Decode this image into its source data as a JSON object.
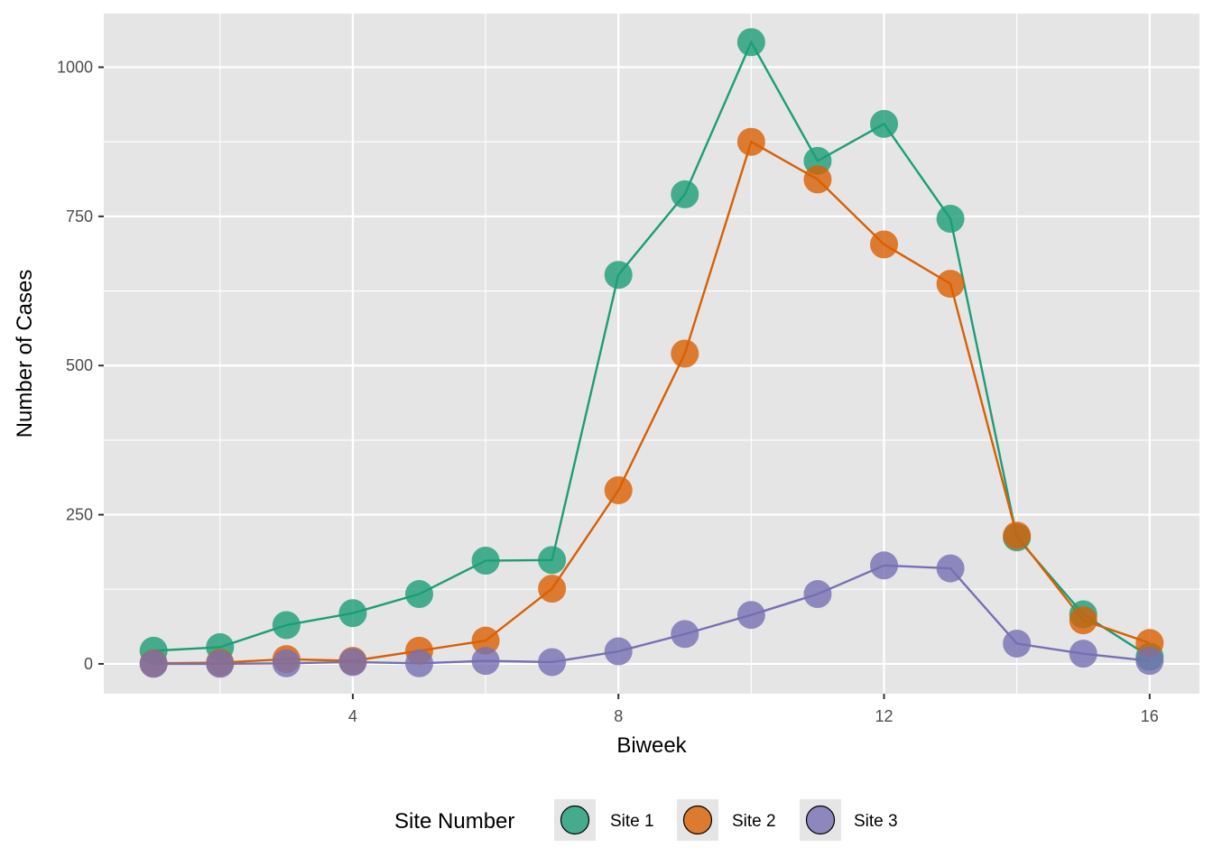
{
  "chart_data": {
    "type": "line",
    "xlabel": "Biweek",
    "ylabel": "Number of Cases",
    "xlim": [
      0.25,
      16.75
    ],
    "ylim": [
      -50,
      1090
    ],
    "x_ticks": [
      4,
      8,
      12,
      16
    ],
    "x_minor_ticks": [
      2,
      6,
      10,
      14
    ],
    "y_ticks": [
      0,
      250,
      500,
      750,
      1000
    ],
    "y_minor_ticks": [
      125,
      375,
      625,
      875
    ],
    "x_tick_labels": [
      "4",
      "8",
      "12",
      "16"
    ],
    "y_tick_labels": [
      "0",
      "250",
      "500",
      "750",
      "1000"
    ],
    "grid": true,
    "legend": {
      "title": "Site Number",
      "position": "bottom"
    },
    "x": [
      1,
      2,
      3,
      4,
      5,
      6,
      7,
      8,
      9,
      10,
      11,
      12,
      13,
      14,
      15,
      16
    ],
    "series": [
      {
        "name": "Site 1",
        "color": "#1b9e77",
        "values": [
          22,
          28,
          65,
          85,
          117,
          173,
          174,
          652,
          787,
          1042,
          843,
          905,
          746,
          212,
          83,
          12
        ]
      },
      {
        "name": "Site 2",
        "color": "#d95f02",
        "values": [
          1,
          2,
          8,
          5,
          22,
          39,
          126,
          291,
          520,
          875,
          812,
          703,
          637,
          215,
          73,
          35
        ]
      },
      {
        "name": "Site 3",
        "color": "#7570b3",
        "values": [
          0,
          0,
          1,
          3,
          1,
          5,
          3,
          21,
          50,
          82,
          117,
          165,
          160,
          34,
          17,
          5
        ]
      }
    ]
  }
}
